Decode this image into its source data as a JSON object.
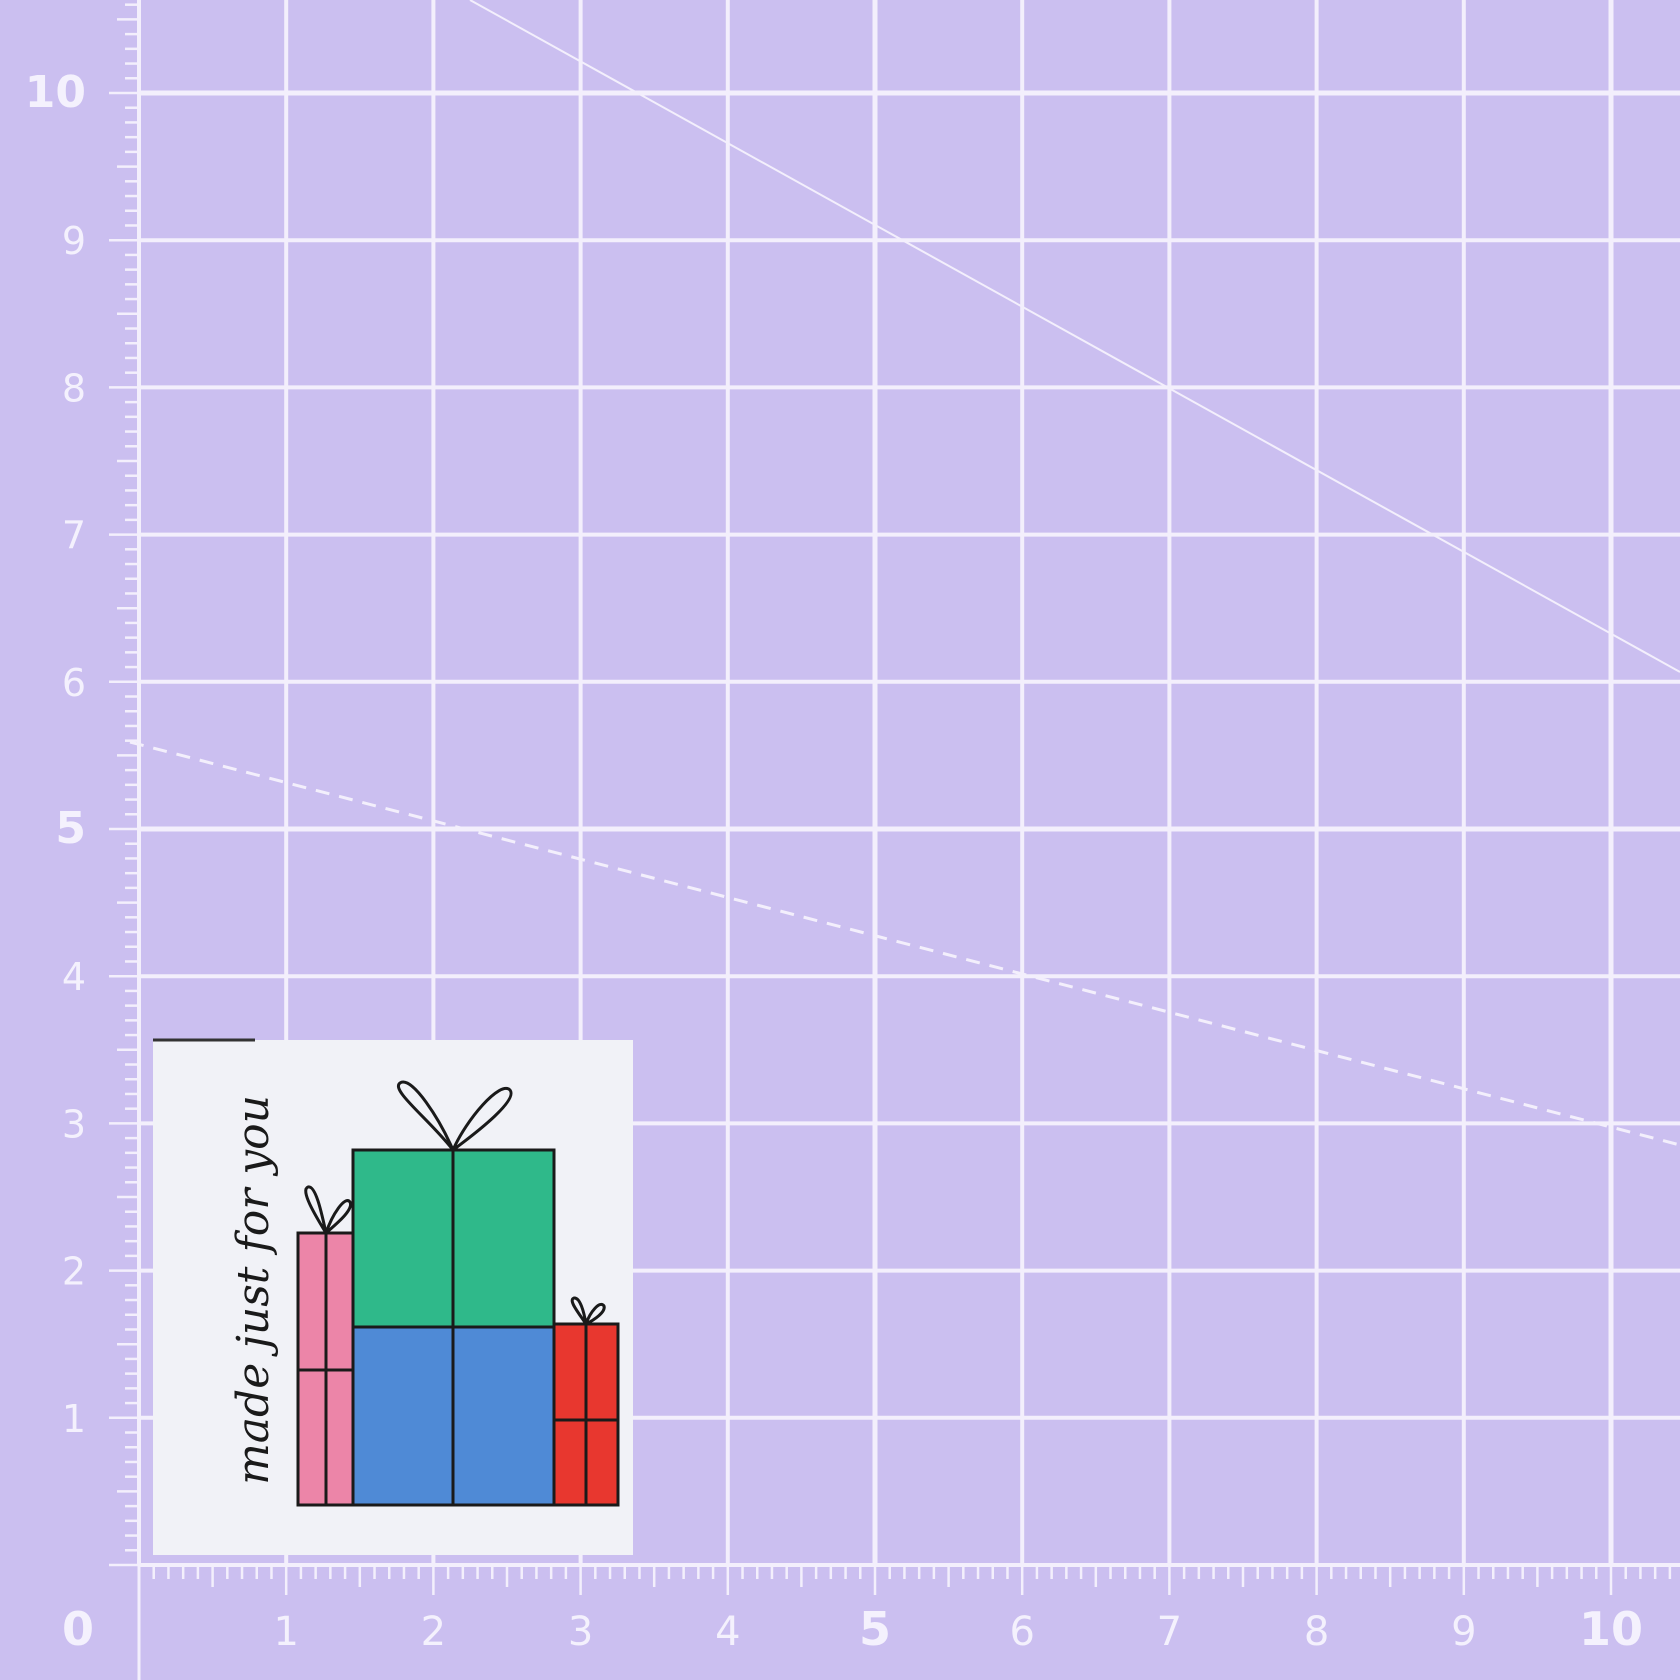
{
  "mat": {
    "background_color": "#cbbff0",
    "line_color": "#f3effc",
    "vertical_scale_labels": [
      "0",
      "1",
      "2",
      "3",
      "4",
      "5",
      "6",
      "7",
      "8",
      "9",
      "10"
    ],
    "horizontal_scale_labels": [
      "0",
      "1",
      "2",
      "3",
      "4",
      "5",
      "6",
      "7",
      "8",
      "9",
      "10"
    ]
  },
  "label": {
    "text": "made just for you",
    "colors": {
      "fabric": "#f1f2f7",
      "green": "#2fb98a",
      "blue": "#4f8ad6",
      "pink": "#ec85a8",
      "red": "#e8372f",
      "outline": "#1a1a1a"
    }
  }
}
